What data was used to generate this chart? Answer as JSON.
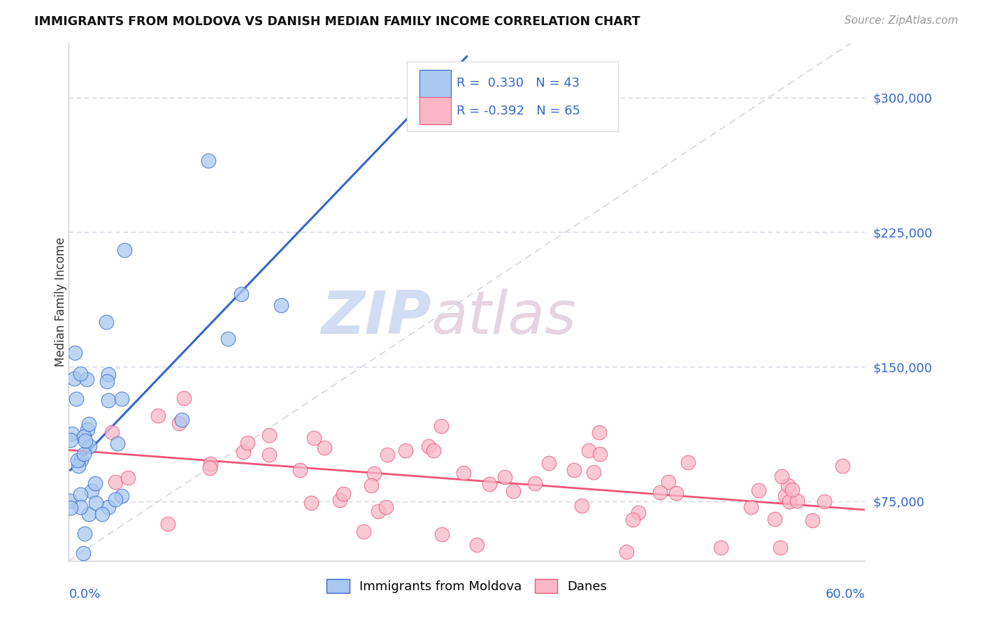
{
  "title": "IMMIGRANTS FROM MOLDOVA VS DANISH MEDIAN FAMILY INCOME CORRELATION CHART",
  "source_text": "Source: ZipAtlas.com",
  "ylabel": "Median Family Income",
  "yticks": [
    75000,
    150000,
    225000,
    300000
  ],
  "ytick_labels": [
    "$75,000",
    "$150,000",
    "$225,000",
    "$300,000"
  ],
  "xmin": 0.0,
  "xmax": 0.6,
  "ymin": 42000,
  "ymax": 330000,
  "color_blue": "#A8C8F0",
  "color_pink": "#F8B8C8",
  "color_blue_line": "#3366CC",
  "color_pink_line": "#EE5577",
  "color_dashed": "#BBBBCC",
  "background_color": "#FFFFFF",
  "watermark_zip_color": "#C8D8EC",
  "watermark_atlas_color": "#D8C8D8",
  "blue_seed": 42,
  "pink_seed": 99
}
